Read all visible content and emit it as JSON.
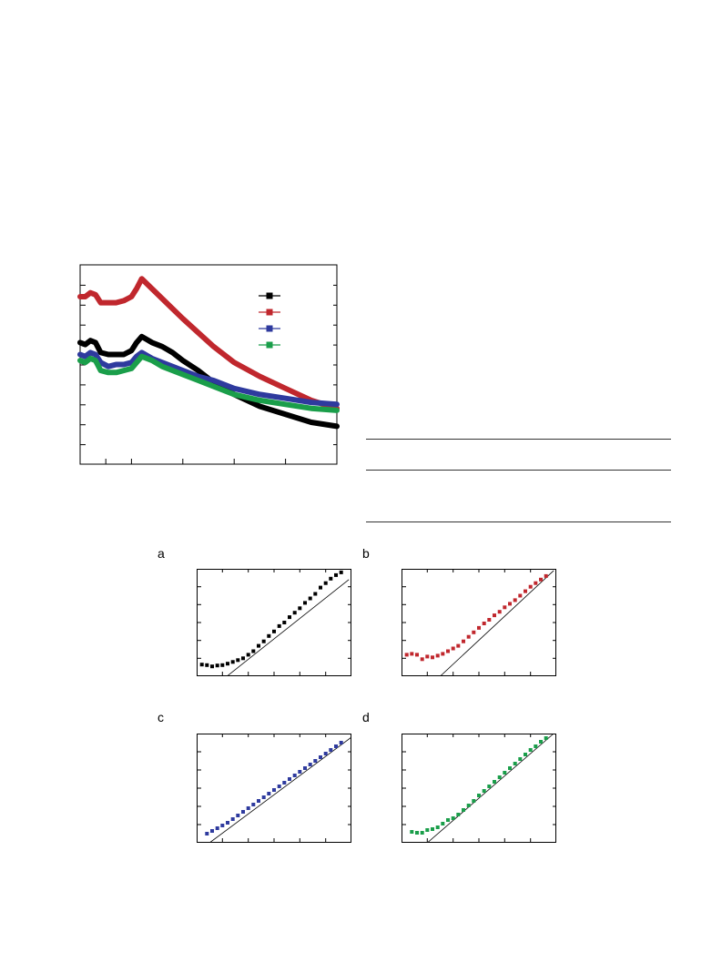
{
  "panels": {
    "a": "a",
    "b": "b",
    "c": "c",
    "d": "d"
  },
  "colors": {
    "black": "#000000",
    "red": "#c0272d",
    "blue": "#2e3a9e",
    "green": "#1a9e4a"
  },
  "chart_data": [
    {
      "type": "line",
      "xlim": [
        300,
        800
      ],
      "ylim": [
        0,
        1
      ],
      "grid": false,
      "legend": "top-right",
      "series": [
        {
          "color": "#000000",
          "x": [
            300,
            310,
            320,
            330,
            340,
            355,
            370,
            385,
            400,
            410,
            420,
            440,
            460,
            480,
            500,
            530,
            560,
            600,
            650,
            700,
            750,
            800
          ],
          "y": [
            0.61,
            0.6,
            0.62,
            0.61,
            0.56,
            0.55,
            0.55,
            0.55,
            0.57,
            0.61,
            0.64,
            0.61,
            0.59,
            0.56,
            0.52,
            0.47,
            0.41,
            0.35,
            0.29,
            0.25,
            0.21,
            0.19
          ]
        },
        {
          "color": "#c0272d",
          "x": [
            300,
            310,
            320,
            330,
            340,
            355,
            370,
            385,
            400,
            410,
            420,
            440,
            460,
            480,
            500,
            530,
            560,
            600,
            650,
            700,
            750,
            800
          ],
          "y": [
            0.84,
            0.84,
            0.86,
            0.85,
            0.81,
            0.81,
            0.81,
            0.82,
            0.84,
            0.88,
            0.93,
            0.88,
            0.83,
            0.78,
            0.73,
            0.66,
            0.59,
            0.51,
            0.44,
            0.38,
            0.32,
            0.28
          ]
        },
        {
          "color": "#2e3a9e",
          "x": [
            300,
            310,
            320,
            330,
            340,
            355,
            370,
            385,
            400,
            410,
            420,
            440,
            460,
            480,
            500,
            530,
            560,
            600,
            650,
            700,
            750,
            800
          ],
          "y": [
            0.55,
            0.54,
            0.56,
            0.55,
            0.51,
            0.49,
            0.5,
            0.5,
            0.51,
            0.54,
            0.56,
            0.53,
            0.51,
            0.49,
            0.47,
            0.44,
            0.42,
            0.38,
            0.35,
            0.33,
            0.31,
            0.3
          ]
        },
        {
          "color": "#1a9e4a",
          "x": [
            300,
            310,
            320,
            330,
            340,
            355,
            370,
            385,
            400,
            410,
            420,
            440,
            460,
            480,
            500,
            530,
            560,
            600,
            650,
            700,
            750,
            800
          ],
          "y": [
            0.52,
            0.51,
            0.53,
            0.52,
            0.47,
            0.46,
            0.46,
            0.47,
            0.48,
            0.51,
            0.54,
            0.52,
            0.49,
            0.47,
            0.45,
            0.42,
            0.39,
            0.35,
            0.32,
            0.3,
            0.28,
            0.27
          ]
        }
      ]
    },
    {
      "type": "scatter",
      "panel": "a",
      "xlim": [
        0,
        6
      ],
      "ylim": [
        0,
        6
      ],
      "points_x": [
        0.2,
        0.4,
        0.6,
        0.8,
        1.0,
        1.2,
        1.4,
        1.6,
        1.8,
        2.0,
        2.2,
        2.4,
        2.6,
        2.8,
        3.0,
        3.2,
        3.4,
        3.6,
        3.8,
        4.0,
        4.2,
        4.4,
        4.6,
        4.8,
        5.0,
        5.2,
        5.4,
        5.6
      ],
      "points_y": [
        0.65,
        0.62,
        0.55,
        0.6,
        0.62,
        0.7,
        0.8,
        0.9,
        1.0,
        1.2,
        1.4,
        1.7,
        1.95,
        2.25,
        2.5,
        2.8,
        3.0,
        3.3,
        3.55,
        3.8,
        4.1,
        4.35,
        4.6,
        4.95,
        5.2,
        5.45,
        5.65,
        5.8
      ],
      "fit_x": [
        1.0,
        5.9
      ],
      "fit_y": [
        -0.2,
        5.4
      ]
    },
    {
      "type": "scatter",
      "panel": "b",
      "xlim": [
        0,
        6
      ],
      "ylim": [
        0,
        6
      ],
      "points_x": [
        0.2,
        0.4,
        0.6,
        0.8,
        1.0,
        1.2,
        1.4,
        1.6,
        1.8,
        2.0,
        2.2,
        2.4,
        2.6,
        2.8,
        3.0,
        3.2,
        3.4,
        3.6,
        3.8,
        4.0,
        4.2,
        4.4,
        4.6,
        4.8,
        5.0,
        5.2,
        5.4,
        5.6
      ],
      "points_y": [
        1.2,
        1.25,
        1.2,
        0.95,
        1.1,
        1.05,
        1.15,
        1.25,
        1.4,
        1.55,
        1.7,
        1.95,
        2.2,
        2.45,
        2.7,
        2.95,
        3.15,
        3.4,
        3.6,
        3.85,
        4.05,
        4.25,
        4.5,
        4.75,
        5.0,
        5.2,
        5.4,
        5.6
      ],
      "fit_x": [
        1.5,
        5.9
      ],
      "fit_y": [
        0.0,
        5.9
      ]
    },
    {
      "type": "scatter",
      "panel": "c",
      "xlim": [
        0,
        6
      ],
      "ylim": [
        0,
        6
      ],
      "points_x": [
        0.4,
        0.6,
        0.8,
        1.0,
        1.2,
        1.4,
        1.6,
        1.8,
        2.0,
        2.2,
        2.4,
        2.6,
        2.8,
        3.0,
        3.2,
        3.4,
        3.6,
        3.8,
        4.0,
        4.2,
        4.4,
        4.6,
        4.8,
        5.0,
        5.2,
        5.4,
        5.6
      ],
      "points_y": [
        0.5,
        0.65,
        0.8,
        0.95,
        1.1,
        1.3,
        1.5,
        1.7,
        1.9,
        2.1,
        2.3,
        2.5,
        2.7,
        2.9,
        3.1,
        3.3,
        3.5,
        3.7,
        3.9,
        4.1,
        4.3,
        4.5,
        4.7,
        4.9,
        5.1,
        5.3,
        5.5
      ],
      "fit_x": [
        0.5,
        6.0
      ],
      "fit_y": [
        0.0,
        5.8
      ]
    },
    {
      "type": "scatter",
      "panel": "d",
      "xlim": [
        0,
        6
      ],
      "ylim": [
        0,
        6
      ],
      "points_x": [
        0.4,
        0.6,
        0.8,
        1.0,
        1.2,
        1.4,
        1.6,
        1.8,
        2.0,
        2.2,
        2.4,
        2.6,
        2.8,
        3.0,
        3.2,
        3.4,
        3.6,
        3.8,
        4.0,
        4.2,
        4.4,
        4.6,
        4.8,
        5.0,
        5.2,
        5.4,
        5.6
      ],
      "points_y": [
        0.6,
        0.55,
        0.55,
        0.7,
        0.75,
        0.85,
        1.05,
        1.25,
        1.35,
        1.55,
        1.8,
        2.05,
        2.3,
        2.6,
        2.85,
        3.1,
        3.35,
        3.6,
        3.85,
        4.1,
        4.35,
        4.6,
        4.85,
        5.1,
        5.3,
        5.55,
        5.75
      ],
      "fit_x": [
        1.0,
        5.9
      ],
      "fit_y": [
        0.0,
        6.0
      ]
    }
  ]
}
